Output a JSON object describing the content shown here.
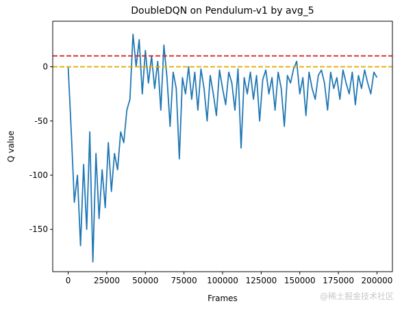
{
  "chart_data": {
    "type": "line",
    "title": "DoubleDQN on Pendulum-v1 by avg_5",
    "xlabel": "Frames",
    "ylabel": "Q value",
    "watermark": "@稀土掘金技术社区",
    "xlim": [
      -10000,
      210000
    ],
    "ylim": [
      -189,
      42
    ],
    "xticks": [
      0,
      25000,
      50000,
      75000,
      100000,
      125000,
      150000,
      175000,
      200000
    ],
    "yticks": [
      -150,
      -100,
      -50,
      0
    ],
    "hlines": [
      {
        "value": 10,
        "color": "#d62728"
      },
      {
        "value": 0,
        "color": "#e5ae00"
      }
    ],
    "x": [
      0,
      2000,
      4000,
      6000,
      8000,
      10000,
      12000,
      14000,
      16000,
      18000,
      20000,
      22000,
      24000,
      26000,
      28000,
      30000,
      32000,
      34000,
      36000,
      38000,
      40000,
      42000,
      44000,
      46000,
      48000,
      50000,
      52000,
      54000,
      56000,
      58000,
      60000,
      62000,
      64000,
      66000,
      68000,
      70000,
      72000,
      74000,
      76000,
      78000,
      80000,
      82000,
      84000,
      86000,
      88000,
      90000,
      92000,
      94000,
      96000,
      98000,
      100000,
      102000,
      104000,
      106000,
      108000,
      110000,
      112000,
      114000,
      116000,
      118000,
      120000,
      122000,
      124000,
      126000,
      128000,
      130000,
      132000,
      134000,
      136000,
      138000,
      140000,
      142000,
      144000,
      146000,
      148000,
      150000,
      152000,
      154000,
      156000,
      158000,
      160000,
      162000,
      164000,
      166000,
      168000,
      170000,
      172000,
      174000,
      176000,
      178000,
      180000,
      182000,
      184000,
      186000,
      188000,
      190000,
      192000,
      194000,
      196000,
      198000,
      200000
    ],
    "series": [
      {
        "color": "#1f77b4",
        "values": [
          0,
          -60,
          -125,
          -100,
          -165,
          -90,
          -150,
          -60,
          -180,
          -80,
          -140,
          -95,
          -130,
          -70,
          -115,
          -80,
          -95,
          -60,
          -70,
          -40,
          -30,
          30,
          0,
          25,
          -25,
          15,
          -15,
          10,
          -20,
          5,
          -40,
          20,
          -10,
          -55,
          -5,
          -20,
          -85,
          -10,
          -25,
          0,
          -30,
          -5,
          -40,
          -2,
          -20,
          -50,
          -8,
          -25,
          -45,
          -3,
          -20,
          -35,
          -5,
          -15,
          -40,
          -2,
          -75,
          -10,
          -25,
          -5,
          -30,
          -8,
          -50,
          -12,
          -3,
          -25,
          -10,
          -40,
          -5,
          -20,
          -55,
          -8,
          -15,
          -2,
          5,
          -25,
          -10,
          -45,
          -5,
          -20,
          -30,
          -8,
          -3,
          -15,
          -40,
          -5,
          -20,
          -10,
          -30,
          -3,
          -15,
          -25,
          -5,
          -35,
          -8,
          -20,
          -3,
          -15,
          -25,
          -5,
          -10
        ]
      }
    ]
  }
}
